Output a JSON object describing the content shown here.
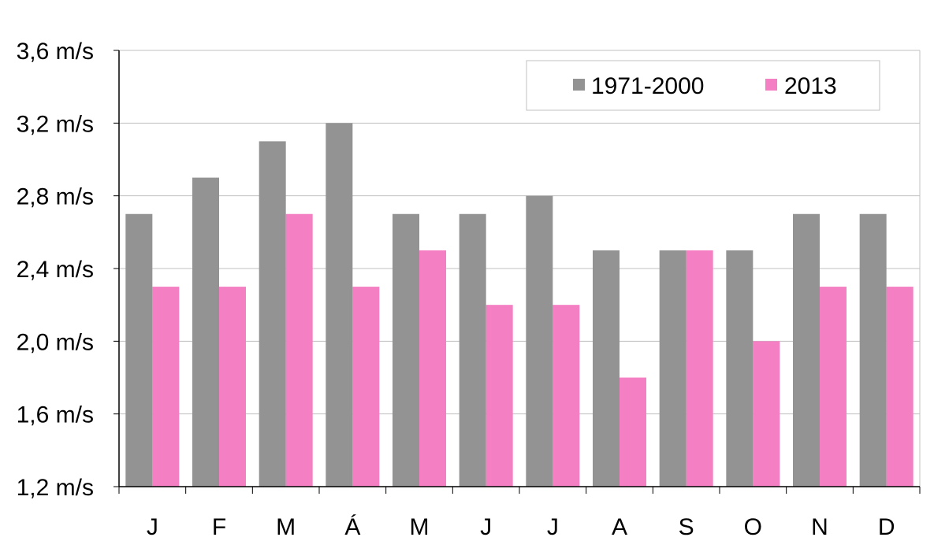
{
  "chart_data": {
    "type": "bar",
    "categories": [
      "J",
      "F",
      "M",
      "Á",
      "M",
      "J",
      "J",
      "A",
      "S",
      "O",
      "N",
      "D"
    ],
    "series": [
      {
        "name": "1971-2000",
        "color": "#939393",
        "values": [
          2.7,
          2.9,
          3.1,
          3.2,
          2.7,
          2.7,
          2.8,
          2.5,
          2.5,
          2.5,
          2.7,
          2.7
        ]
      },
      {
        "name": "2013",
        "color": "#f47fc3",
        "values": [
          2.3,
          2.3,
          2.7,
          2.3,
          2.5,
          2.2,
          2.2,
          1.8,
          2.5,
          2.0,
          2.3,
          2.3
        ]
      }
    ],
    "y_ticks": [
      "1,2 m/s",
      "1,6 m/s",
      "2,0 m/s",
      "2,4 m/s",
      "2,8 m/s",
      "3,2 m/s",
      "3,6 m/s"
    ],
    "ylim": [
      1.2,
      3.6
    ],
    "ytick_step": 0.4,
    "grid": true,
    "legend_position": "top-right"
  }
}
